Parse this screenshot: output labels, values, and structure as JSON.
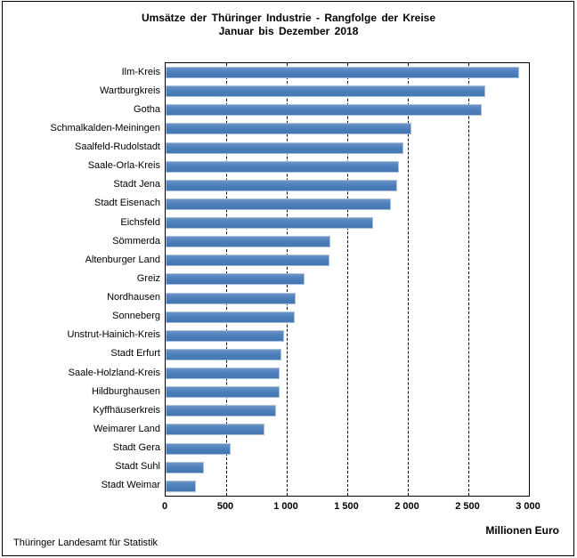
{
  "title": {
    "line1": "Umsätze der Thüringer Industrie - Rangfolge der Kreise",
    "line2": "Januar bis Dezember 2018"
  },
  "chart_data": {
    "type": "bar",
    "orientation": "horizontal",
    "title": "Umsätze der Thüringer Industrie - Rangfolge der Kreise",
    "subtitle": "Januar bis Dezember 2018",
    "xlabel": "Millionen Euro",
    "ylabel": "",
    "xlim": [
      0,
      3000
    ],
    "xticks": [
      0,
      500,
      1000,
      1500,
      2000,
      2500,
      3000
    ],
    "xtick_labels": [
      "0",
      "500",
      "1 000",
      "1 500",
      "2 000",
      "2 500",
      "3 000"
    ],
    "grid": "vertical-dashed",
    "legend": "none",
    "bar_fill_color": "#4f81bd",
    "bar_border_color": "#a9c0dd",
    "categories": [
      "Ilm-Kreis",
      "Wartburgkreis",
      "Gotha",
      "Schmalkalden-Meiningen",
      "Saalfeld-Rudolstadt",
      "Saale-Orla-Kreis",
      "Stadt Jena",
      "Stadt Eisenach",
      "Eichsfeld",
      "Sömmerda",
      "Altenburger Land",
      "Greiz",
      "Nordhausen",
      "Sonneberg",
      "Unstrut-Hainich-Kreis",
      "Stadt Erfurt",
      "Saale-Holzland-Kreis",
      "Hildburghausen",
      "Kyffhäuserkreis",
      "Weimarer Land",
      "Stadt Gera",
      "Stadt Suhl",
      "Stadt Weimar"
    ],
    "values": [
      2920,
      2640,
      2610,
      2030,
      1960,
      1925,
      1910,
      1860,
      1715,
      1360,
      1350,
      1150,
      1070,
      1065,
      975,
      958,
      942,
      938,
      915,
      815,
      540,
      315,
      247
    ]
  },
  "unit_label": "Millionen Euro",
  "footer": {
    "source": "Thüringer Landesamt für Statistik"
  }
}
